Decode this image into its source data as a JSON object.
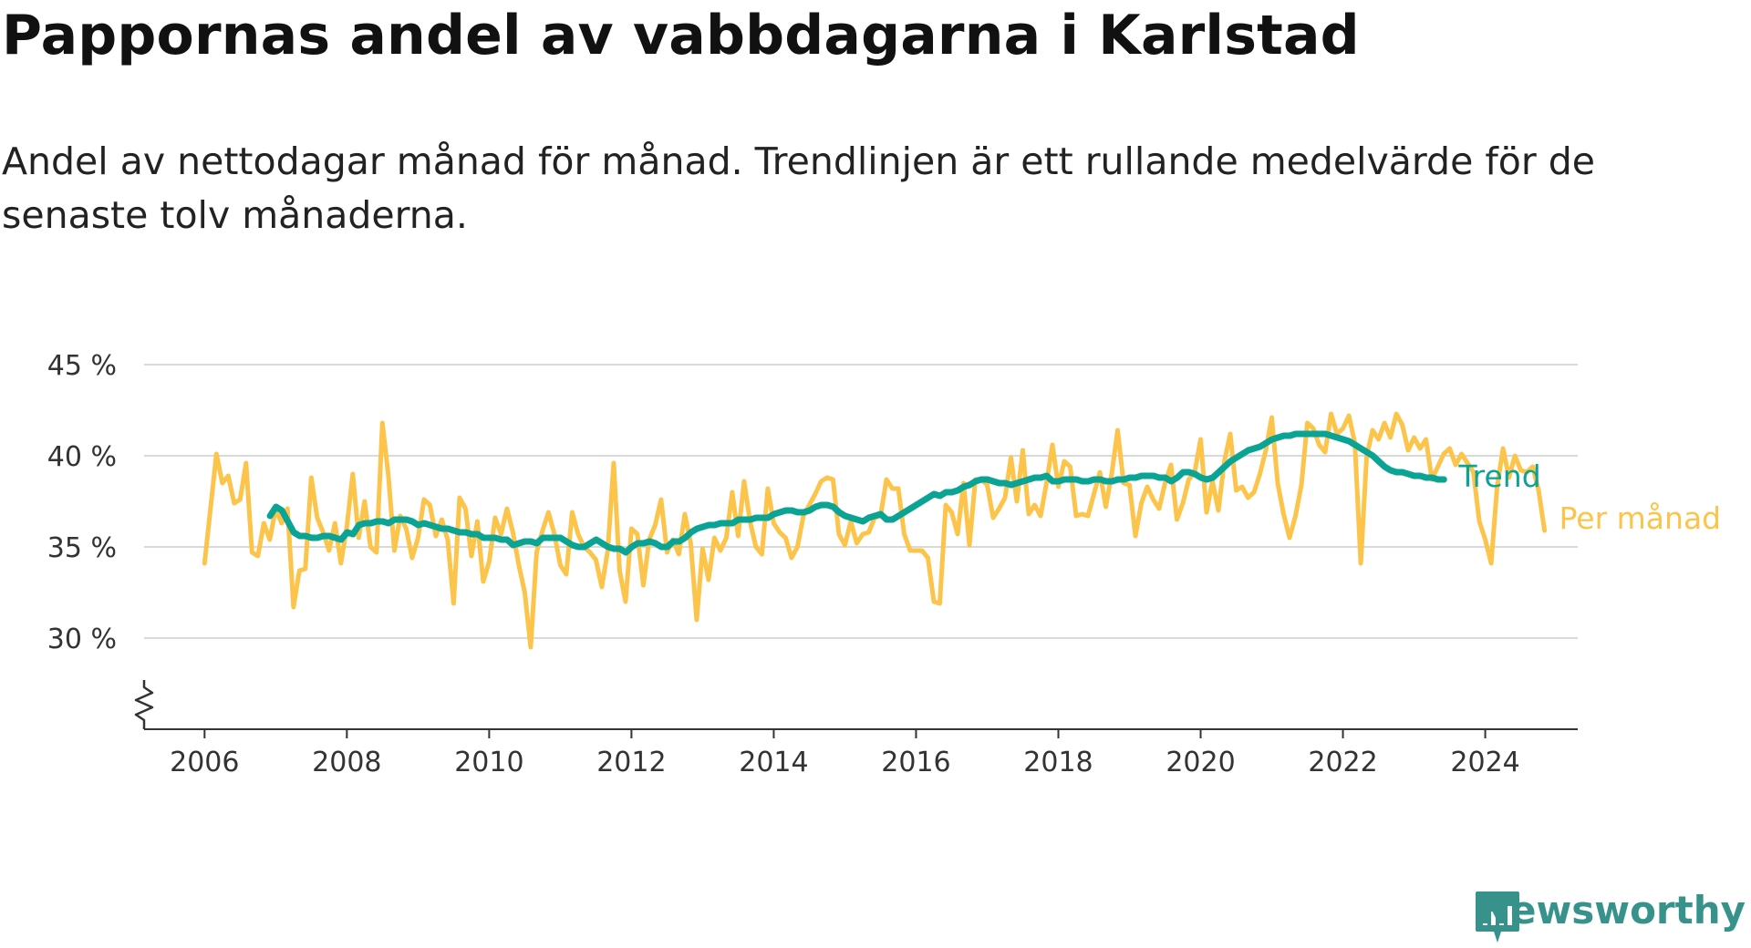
{
  "title": "Pappornas andel av vabbdagarna i Karlstad",
  "subtitle": "Andel av nettodagar månad för månad. Trendlinjen är ett rullande medelvärde för de senaste tolv månaderna.",
  "brand": {
    "name": "Newsworthy",
    "color": "#36928a",
    "icon": "newsworthy-logo-icon"
  },
  "chart_data": {
    "type": "line",
    "y_unit": " %",
    "yticks": [
      30,
      35,
      40,
      45
    ],
    "ylim": [
      25,
      45
    ],
    "y_axis_break": true,
    "xticks": [
      2006,
      2008,
      2010,
      2012,
      2014,
      2016,
      2018,
      2020,
      2022,
      2024
    ],
    "xlim": [
      2005.15,
      2025.3
    ],
    "grid": true,
    "legend_placement": "direct-labels-right",
    "series": [
      {
        "name": "Trend",
        "color": "#0aa394",
        "x_start": 2006.92,
        "x_step": 0.0833333,
        "values": [
          36.7,
          37.2,
          37.0,
          36.4,
          35.8,
          35.6,
          35.6,
          35.5,
          35.5,
          35.6,
          35.6,
          35.5,
          35.4,
          35.8,
          35.7,
          36.2,
          36.3,
          36.3,
          36.4,
          36.4,
          36.3,
          36.5,
          36.5,
          36.5,
          36.4,
          36.2,
          36.3,
          36.2,
          36.1,
          36.0,
          36.0,
          35.9,
          35.8,
          35.8,
          35.7,
          35.7,
          35.5,
          35.5,
          35.5,
          35.4,
          35.4,
          35.1,
          35.2,
          35.3,
          35.3,
          35.2,
          35.5,
          35.5,
          35.5,
          35.5,
          35.3,
          35.1,
          35.0,
          35.0,
          35.2,
          35.4,
          35.2,
          35.0,
          34.9,
          34.9,
          34.7,
          35.0,
          35.2,
          35.2,
          35.3,
          35.2,
          35.0,
          35.0,
          35.3,
          35.3,
          35.5,
          35.8,
          36.0,
          36.1,
          36.2,
          36.2,
          36.3,
          36.3,
          36.3,
          36.5,
          36.5,
          36.5,
          36.6,
          36.6,
          36.6,
          36.8,
          36.9,
          37.0,
          37.0,
          36.9,
          36.9,
          37.0,
          37.2,
          37.3,
          37.3,
          37.2,
          36.9,
          36.7,
          36.6,
          36.5,
          36.4,
          36.6,
          36.7,
          36.8,
          36.5,
          36.5,
          36.7,
          36.9,
          37.1,
          37.3,
          37.5,
          37.7,
          37.9,
          37.8,
          38.0,
          38.0,
          38.1,
          38.3,
          38.4,
          38.6,
          38.7,
          38.7,
          38.6,
          38.5,
          38.5,
          38.4,
          38.5,
          38.6,
          38.7,
          38.8,
          38.8,
          38.9,
          38.6,
          38.6,
          38.7,
          38.7,
          38.7,
          38.6,
          38.6,
          38.7,
          38.7,
          38.6,
          38.6,
          38.7,
          38.7,
          38.8,
          38.8,
          38.9,
          38.9,
          38.9,
          38.8,
          38.8,
          38.6,
          38.8,
          39.1,
          39.1,
          39.0,
          38.8,
          38.7,
          38.8,
          39.1,
          39.4,
          39.7,
          39.9,
          40.1,
          40.3,
          40.4,
          40.5,
          40.7,
          40.9,
          41.0,
          41.1,
          41.1,
          41.2,
          41.2,
          41.2,
          41.2,
          41.2,
          41.2,
          41.1,
          41.0,
          40.9,
          40.8,
          40.6,
          40.4,
          40.2,
          40.0,
          39.7,
          39.4,
          39.2,
          39.1,
          39.1,
          39.0,
          38.9,
          38.9,
          38.8,
          38.8,
          38.7,
          38.7
        ]
      },
      {
        "name": "Per månad",
        "color": "#fcc44a",
        "x_start": 2006.0,
        "x_step": 0.0833333,
        "values": [
          34.1,
          37.1,
          40.1,
          38.5,
          38.9,
          37.4,
          37.6,
          39.6,
          34.7,
          34.5,
          36.3,
          35.4,
          37.1,
          36.3,
          37.1,
          31.7,
          33.7,
          33.8,
          38.8,
          36.6,
          35.8,
          34.8,
          36.3,
          34.1,
          36.1,
          39.0,
          35.5,
          37.5,
          35.0,
          34.7,
          41.8,
          38.9,
          34.8,
          36.7,
          36.0,
          34.4,
          35.5,
          37.6,
          37.3,
          35.6,
          36.5,
          35.4,
          31.9,
          37.7,
          37.1,
          34.5,
          36.4,
          33.1,
          34.2,
          36.6,
          35.7,
          37.1,
          35.8,
          34.0,
          32.5,
          29.5,
          34.7,
          35.9,
          36.9,
          35.7,
          34.0,
          33.5,
          36.9,
          35.7,
          35.0,
          34.7,
          34.3,
          32.8,
          34.8,
          39.6,
          33.7,
          32.0,
          36.0,
          35.7,
          32.9,
          35.4,
          36.2,
          37.6,
          34.7,
          35.4,
          34.6,
          36.8,
          35.2,
          31.0,
          34.9,
          33.2,
          35.5,
          34.8,
          35.5,
          38.0,
          35.6,
          38.6,
          36.4,
          35.0,
          34.6,
          38.2,
          36.3,
          35.8,
          35.5,
          34.4,
          35.0,
          36.7,
          37.3,
          37.9,
          38.6,
          38.8,
          38.7,
          35.7,
          35.1,
          36.4,
          35.2,
          35.7,
          35.8,
          36.6,
          36.7,
          38.7,
          38.2,
          38.2,
          35.7,
          34.8,
          34.8,
          34.8,
          34.4,
          32.0,
          31.9,
          37.3,
          36.9,
          35.7,
          38.5,
          35.1,
          38.7,
          38.7,
          38.4,
          36.6,
          37.1,
          37.7,
          39.9,
          37.5,
          40.3,
          36.8,
          37.3,
          36.7,
          38.5,
          40.6,
          38.3,
          39.7,
          39.4,
          36.7,
          36.8,
          36.7,
          37.9,
          39.1,
          37.2,
          39.0,
          41.4,
          38.5,
          38.4,
          35.6,
          37.4,
          38.3,
          37.6,
          37.1,
          38.5,
          39.5,
          36.5,
          37.4,
          38.7,
          39.1,
          40.9,
          36.9,
          38.6,
          37.0,
          39.7,
          41.2,
          38.1,
          38.3,
          37.7,
          38.0,
          39.0,
          40.3,
          42.1,
          38.5,
          36.8,
          35.5,
          36.7,
          38.4,
          41.8,
          41.5,
          40.6,
          40.2,
          42.3,
          41.2,
          41.5,
          42.2,
          40.7,
          34.1,
          40.0,
          41.4,
          40.9,
          41.8,
          41.0,
          42.3,
          41.7,
          40.3,
          41.0,
          40.4,
          40.9,
          38.7,
          39.4,
          40.1,
          40.4,
          39.5,
          40.1,
          39.6,
          39.1,
          36.4,
          35.4,
          34.1,
          38.3,
          40.4,
          38.8,
          40.0,
          39.2,
          39.1,
          39.4,
          38.1,
          35.9
        ]
      }
    ]
  }
}
